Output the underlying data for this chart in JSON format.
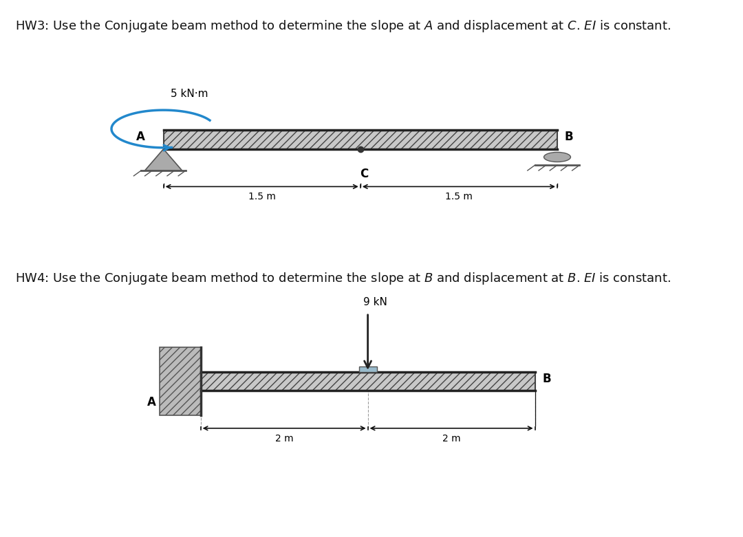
{
  "bg_color": "#f0f0f0",
  "fig_bg": "#ffffff",
  "hw3_title": "HW3: Use the Conjugate beam method to determine the slope at $A$ and displacement at $C$. $EI$ is constant.",
  "hw4_title": "HW4: Use the Conjugate beam method to determine the slope at $B$ and displacement at $B$. $EI$ is constant.",
  "hw3_moment_label": "5 kN·m",
  "hw3_span1": "1.5 m",
  "hw3_span2": "1.5 m",
  "hw3_label_A": "A",
  "hw3_label_B": "B",
  "hw3_label_C": "C",
  "hw4_force_label": "9 kN",
  "hw4_span1": "2 m",
  "hw4_span2": "2 m",
  "hw4_label_A": "A",
  "hw4_label_B": "B",
  "beam_color": "#c8c8c8",
  "beam_edge": "#444444",
  "hatch_color": "#888888",
  "support_color": "#666666",
  "arrow_color": "#2288cc",
  "text_color": "#111111",
  "title_fontsize": 13,
  "label_fontsize": 11,
  "dim_fontsize": 10
}
